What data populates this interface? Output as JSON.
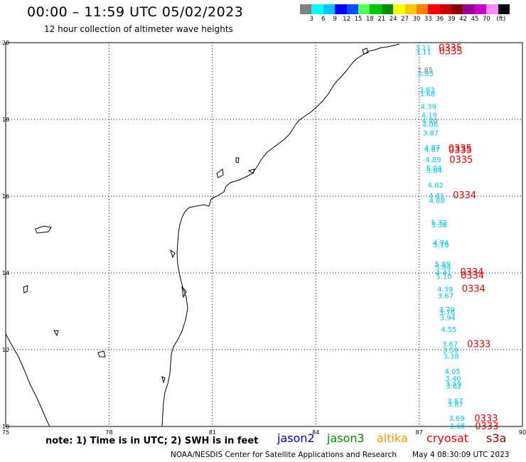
{
  "header": {
    "title": "00:00 – 11:59 UTC 05/02/2023",
    "subtitle": "12 hour collection of altimeter wave heights"
  },
  "color_scale": {
    "colors": [
      "#808080",
      "#00ffff",
      "#00c8ff",
      "#0000ff",
      "#0050ff",
      "#55ff55",
      "#00c800",
      "#008c00",
      "#ffff00",
      "#ffc800",
      "#ff8000",
      "#ff0000",
      "#c80000",
      "#8c0000",
      "#960096",
      "#c800c8",
      "#ff88ff",
      "#000000"
    ],
    "labels": [
      "3",
      "6",
      "9",
      "12",
      "15",
      "18",
      "21",
      "24",
      "27",
      "30",
      "33",
      "36",
      "39",
      "42",
      "45",
      "70",
      "(ft)"
    ]
  },
  "map": {
    "lat_labels": [
      "20",
      "18",
      "16",
      "14",
      "12",
      "10"
    ],
    "lon_labels": [
      "75",
      "78",
      "81",
      "84",
      "87",
      "90"
    ],
    "jason3_track": [
      {
        "lat": 19.88,
        "swh": "3.11"
      },
      {
        "lat": 19.77,
        "swh": "3.11"
      },
      {
        "lat": 19.3,
        "swh": "2.85"
      },
      {
        "lat": 19.2,
        "swh": "3.93"
      },
      {
        "lat": 18.78,
        "swh": "3.83"
      },
      {
        "lat": 18.68,
        "swh": "3.68"
      },
      {
        "lat": 18.34,
        "swh": "4.39"
      },
      {
        "lat": 18.12,
        "swh": "4.19"
      },
      {
        "lat": 17.97,
        "swh": "4.40"
      },
      {
        "lat": 17.88,
        "swh": "4.06"
      },
      {
        "lat": 17.66,
        "swh": "3.87"
      },
      {
        "lat": 17.28,
        "swh": "4.87"
      },
      {
        "lat": 17.22,
        "swh": "4.87"
      },
      {
        "lat": 16.96,
        "swh": "4.89"
      },
      {
        "lat": 16.74,
        "swh": "5.04"
      },
      {
        "lat": 16.68,
        "swh": "5.04"
      },
      {
        "lat": 16.3,
        "swh": "4.62"
      },
      {
        "lat": 16.02,
        "swh": "4.81"
      },
      {
        "lat": 15.9,
        "swh": "4.88"
      },
      {
        "lat": 15.32,
        "swh": "5.32"
      },
      {
        "lat": 15.26,
        "swh": "5.38"
      },
      {
        "lat": 14.8,
        "swh": "4.94"
      },
      {
        "lat": 14.74,
        "swh": "5.10"
      },
      {
        "lat": 14.24,
        "swh": "5.89"
      },
      {
        "lat": 14.16,
        "swh": "5.84"
      },
      {
        "lat": 14.02,
        "swh": "4.41"
      },
      {
        "lat": 13.92,
        "swh": "5.10"
      },
      {
        "lat": 13.58,
        "swh": "4.39"
      },
      {
        "lat": 13.42,
        "swh": "3.67"
      },
      {
        "lat": 13.06,
        "swh": "3.79"
      },
      {
        "lat": 12.98,
        "swh": "3.76"
      },
      {
        "lat": 12.84,
        "swh": "3.94"
      },
      {
        "lat": 12.54,
        "swh": "4.55"
      },
      {
        "lat": 12.16,
        "swh": "3.67"
      },
      {
        "lat": 12.0,
        "swh": "3.59"
      },
      {
        "lat": 11.84,
        "swh": "3.38"
      },
      {
        "lat": 11.44,
        "swh": "4.05"
      },
      {
        "lat": 11.26,
        "swh": "3.40"
      },
      {
        "lat": 11.12,
        "swh": "3.59"
      },
      {
        "lat": 11.06,
        "swh": "3.62"
      },
      {
        "lat": 10.68,
        "swh": "3.87"
      },
      {
        "lat": 10.58,
        "swh": "3.87"
      },
      {
        "lat": 10.22,
        "swh": "3.69"
      },
      {
        "lat": 10.02,
        "swh": "3.65"
      }
    ],
    "times": [
      {
        "lat": 19.88,
        "text": "0335"
      },
      {
        "lat": 19.79,
        "text": "0335"
      },
      {
        "lat": 17.26,
        "text": "0335"
      },
      {
        "lat": 17.21,
        "text": "0335"
      },
      {
        "lat": 16.96,
        "text": "0335"
      },
      {
        "lat": 16.04,
        "text": "0334"
      },
      {
        "lat": 14.04,
        "text": "0334"
      },
      {
        "lat": 13.94,
        "text": "0334"
      },
      {
        "lat": 13.6,
        "text": "0334"
      },
      {
        "lat": 12.16,
        "text": "0333"
      },
      {
        "lat": 10.22,
        "text": "0333"
      },
      {
        "lat": 10.02,
        "text": "0333"
      }
    ]
  },
  "footer": {
    "note": "note:  1) Time is in UTC;  2) SWH is in feet",
    "legend": [
      {
        "label": "jason2",
        "color": "#0000c8"
      },
      {
        "label": "jason3",
        "color": "#008c00"
      },
      {
        "label": "altika",
        "color": "#ff9600"
      },
      {
        "label": "cryosat",
        "color": "#ff0000"
      },
      {
        "label": "s3a",
        "color": "#8c0000"
      }
    ],
    "credit": "NOAA/NESDIS Center for Satellite Applications and Research",
    "generated": "May  4 08:30:09 UTC 2023"
  }
}
